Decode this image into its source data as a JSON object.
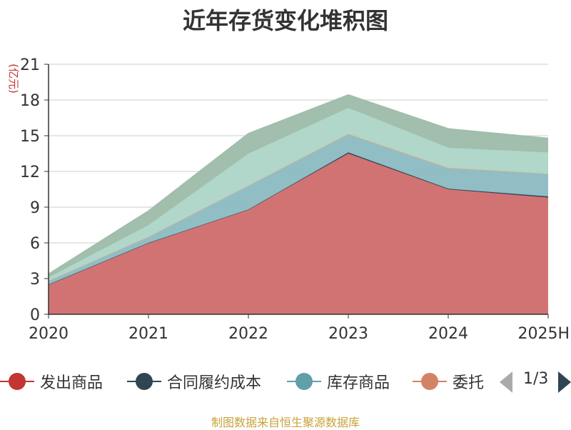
{
  "title": "近年存货变化堆积图",
  "unit_label": "(亿元)",
  "source": "制图数据来自恒生聚源数据库",
  "legend": {
    "items": [
      {
        "label": "发出商品",
        "color": "#c23531"
      },
      {
        "label": "合同履约成本",
        "color": "#2f4554"
      },
      {
        "label": "库存商品",
        "color": "#61a0a8"
      },
      {
        "label": "委托",
        "color": "#d48265"
      }
    ],
    "pager": "1/3"
  },
  "chart_data": {
    "type": "area",
    "stacked": true,
    "categories": [
      "2020",
      "2021",
      "2022",
      "2023",
      "2024",
      "2025H"
    ],
    "ylim": [
      0,
      21
    ],
    "yticks": [
      0,
      3,
      6,
      9,
      12,
      15,
      18,
      21
    ],
    "grid": true,
    "ylabel": "(亿元)",
    "series": [
      {
        "name": "发出商品",
        "color": "#d06b6b",
        "values": [
          2.5,
          6.0,
          8.8,
          13.5,
          10.5,
          9.8
        ]
      },
      {
        "name": "合同履约成本",
        "color": "#2f4554",
        "values": [
          0.0,
          0.0,
          0.0,
          0.1,
          0.05,
          0.1
        ]
      },
      {
        "name": "库存商品",
        "color": "#8bbac1",
        "values": [
          0.3,
          0.5,
          2.0,
          1.5,
          1.7,
          1.9
        ]
      },
      {
        "name": "委托",
        "color": "#e7a987",
        "values": [
          0.0,
          0.0,
          0.0,
          0.05,
          0.05,
          0.0
        ]
      },
      {
        "name": "",
        "color": "#acd5c6",
        "values": [
          0.3,
          1.0,
          2.7,
          2.2,
          1.7,
          1.8
        ]
      },
      {
        "name": "",
        "color": "#9dbba8",
        "values": [
          0.3,
          1.2,
          1.7,
          1.1,
          1.6,
          1.2
        ]
      }
    ]
  }
}
